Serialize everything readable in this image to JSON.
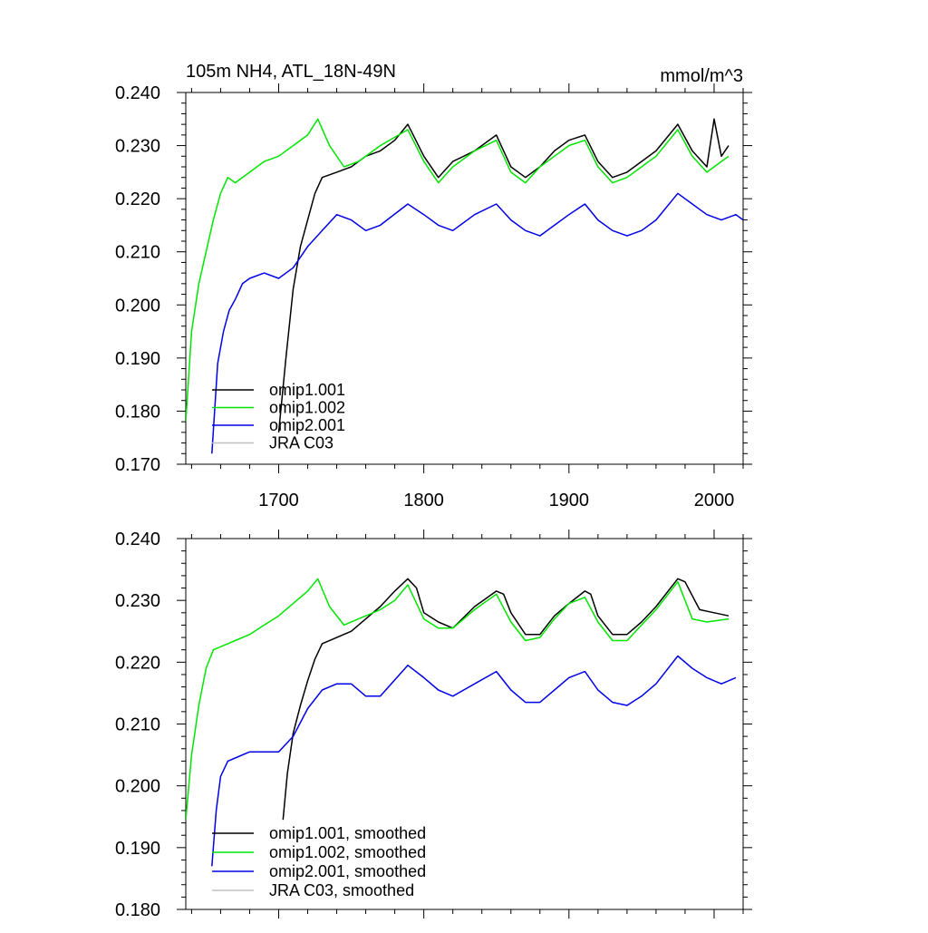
{
  "chart_data": [
    {
      "type": "line",
      "title": "105m NH4, ATL_18N-49N",
      "units": "mmol/m^3",
      "xlim": [
        1636,
        2020
      ],
      "ylim": [
        0.17,
        0.24
      ],
      "x_tick_labels": [
        "1700",
        "1800",
        "1900",
        "2000"
      ],
      "y_tick_labels": [
        "0.170",
        "0.180",
        "0.190",
        "0.200",
        "0.210",
        "0.220",
        "0.230",
        "0.240"
      ],
      "legend_position": "bottom-left",
      "legend": [
        "omip1.001",
        "omip1.002",
        "omip2.001",
        "JRA C03"
      ],
      "series": [
        {
          "name": "omip1.001",
          "color": "#000000",
          "x": [
            1700,
            1705,
            1710,
            1715,
            1720,
            1725,
            1730,
            1740,
            1750,
            1760,
            1770,
            1780,
            1789,
            1800,
            1810,
            1820,
            1835,
            1850,
            1860,
            1870,
            1880,
            1890,
            1900,
            1911,
            1920,
            1930,
            1940,
            1950,
            1960,
            1975,
            1985,
            1995,
            2000,
            2005,
            2010
          ],
          "y": [
            0.176,
            0.19,
            0.203,
            0.211,
            0.216,
            0.221,
            0.224,
            0.225,
            0.226,
            0.228,
            0.229,
            0.231,
            0.234,
            0.228,
            0.224,
            0.227,
            0.229,
            0.232,
            0.226,
            0.224,
            0.226,
            0.229,
            0.231,
            0.232,
            0.227,
            0.224,
            0.225,
            0.227,
            0.229,
            0.234,
            0.229,
            0.226,
            0.235,
            0.228,
            0.23
          ]
        },
        {
          "name": "omip1.002",
          "color": "#00e600",
          "x": [
            1636,
            1640,
            1645,
            1650,
            1655,
            1660,
            1665,
            1670,
            1680,
            1690,
            1700,
            1710,
            1720,
            1727,
            1735,
            1745,
            1755,
            1770,
            1789,
            1800,
            1810,
            1820,
            1835,
            1850,
            1860,
            1870,
            1880,
            1890,
            1900,
            1911,
            1920,
            1930,
            1940,
            1950,
            1960,
            1975,
            1985,
            1995,
            2005,
            2010
          ],
          "y": [
            0.178,
            0.195,
            0.204,
            0.21,
            0.216,
            0.221,
            0.224,
            0.223,
            0.225,
            0.227,
            0.228,
            0.23,
            0.232,
            0.235,
            0.23,
            0.226,
            0.227,
            0.23,
            0.233,
            0.227,
            0.223,
            0.226,
            0.229,
            0.231,
            0.225,
            0.223,
            0.226,
            0.228,
            0.23,
            0.231,
            0.226,
            0.223,
            0.224,
            0.226,
            0.228,
            0.233,
            0.228,
            0.225,
            0.227,
            0.228
          ]
        },
        {
          "name": "omip2.001",
          "color": "#0000e6",
          "x": [
            1654,
            1658,
            1662,
            1666,
            1670,
            1675,
            1680,
            1690,
            1700,
            1710,
            1720,
            1730,
            1740,
            1750,
            1760,
            1770,
            1789,
            1800,
            1810,
            1820,
            1835,
            1850,
            1860,
            1870,
            1880,
            1890,
            1900,
            1911,
            1920,
            1930,
            1940,
            1950,
            1960,
            1975,
            1985,
            1995,
            2005,
            2015,
            2020
          ],
          "y": [
            0.172,
            0.189,
            0.195,
            0.199,
            0.201,
            0.204,
            0.205,
            0.206,
            0.205,
            0.207,
            0.211,
            0.214,
            0.217,
            0.216,
            0.214,
            0.215,
            0.219,
            0.217,
            0.215,
            0.214,
            0.217,
            0.219,
            0.216,
            0.214,
            0.213,
            0.215,
            0.217,
            0.219,
            0.216,
            0.214,
            0.213,
            0.214,
            0.216,
            0.221,
            0.219,
            0.217,
            0.216,
            0.217,
            0.216
          ]
        },
        {
          "name": "JRA C03",
          "color": "#c0c0c0",
          "x": [],
          "y": []
        }
      ]
    },
    {
      "type": "line",
      "xlim": [
        1636,
        2020
      ],
      "ylim": [
        0.18,
        0.24
      ],
      "y_tick_labels": [
        "0.180",
        "0.190",
        "0.200",
        "0.210",
        "0.220",
        "0.230",
        "0.240"
      ],
      "legend_position": "bottom-left",
      "legend": [
        "omip1.001, smoothed",
        "omip1.002, smoothed",
        "omip2.001, smoothed",
        "JRA C03, smoothed"
      ],
      "series": [
        {
          "name": "omip1.001, smoothed",
          "color": "#000000",
          "x": [
            1703,
            1706,
            1710,
            1715,
            1720,
            1725,
            1730,
            1740,
            1750,
            1760,
            1770,
            1780,
            1789,
            1795,
            1800,
            1810,
            1820,
            1835,
            1850,
            1855,
            1860,
            1870,
            1880,
            1890,
            1900,
            1911,
            1915,
            1920,
            1930,
            1940,
            1950,
            1960,
            1975,
            1980,
            1990,
            2000,
            2010
          ],
          "y": [
            0.1945,
            0.202,
            0.2085,
            0.213,
            0.217,
            0.2205,
            0.223,
            0.224,
            0.225,
            0.227,
            0.229,
            0.2315,
            0.2335,
            0.232,
            0.228,
            0.2265,
            0.2255,
            0.229,
            0.2315,
            0.231,
            0.228,
            0.2245,
            0.2245,
            0.2275,
            0.2295,
            0.2315,
            0.231,
            0.2275,
            0.2245,
            0.2245,
            0.2265,
            0.229,
            0.2335,
            0.233,
            0.2285,
            0.228,
            0.2275
          ]
        },
        {
          "name": "omip1.002, smoothed",
          "color": "#00e600",
          "x": [
            1636,
            1640,
            1645,
            1650,
            1655,
            1660,
            1670,
            1680,
            1690,
            1700,
            1710,
            1720,
            1727,
            1735,
            1745,
            1755,
            1770,
            1780,
            1789,
            1800,
            1810,
            1820,
            1835,
            1850,
            1860,
            1870,
            1880,
            1890,
            1900,
            1911,
            1920,
            1930,
            1940,
            1950,
            1960,
            1975,
            1985,
            1995,
            2010
          ],
          "y": [
            0.1945,
            0.205,
            0.213,
            0.219,
            0.222,
            0.2225,
            0.2235,
            0.2245,
            0.226,
            0.2275,
            0.2295,
            0.2315,
            0.2335,
            0.229,
            0.226,
            0.227,
            0.2285,
            0.23,
            0.2325,
            0.227,
            0.2255,
            0.2255,
            0.2285,
            0.231,
            0.2265,
            0.2235,
            0.224,
            0.227,
            0.2295,
            0.2305,
            0.2265,
            0.2235,
            0.2235,
            0.226,
            0.2285,
            0.233,
            0.227,
            0.2265,
            0.227
          ]
        },
        {
          "name": "omip2.001, smoothed",
          "color": "#0000e6",
          "x": [
            1654,
            1657,
            1660,
            1665,
            1670,
            1680,
            1690,
            1700,
            1710,
            1720,
            1730,
            1740,
            1750,
            1760,
            1770,
            1789,
            1800,
            1810,
            1820,
            1835,
            1850,
            1860,
            1870,
            1880,
            1890,
            1900,
            1911,
            1920,
            1930,
            1940,
            1950,
            1960,
            1975,
            1985,
            1995,
            2005,
            2015
          ],
          "y": [
            0.187,
            0.196,
            0.2015,
            0.204,
            0.2045,
            0.2055,
            0.2055,
            0.2055,
            0.208,
            0.2125,
            0.2155,
            0.2165,
            0.2165,
            0.2145,
            0.2145,
            0.2195,
            0.2175,
            0.2155,
            0.2145,
            0.2165,
            0.2185,
            0.2155,
            0.2135,
            0.2135,
            0.2155,
            0.2175,
            0.2185,
            0.2155,
            0.2135,
            0.213,
            0.2145,
            0.2165,
            0.221,
            0.219,
            0.2175,
            0.2165,
            0.2175
          ]
        },
        {
          "name": "JRA C03, smoothed",
          "color": "#c0c0c0",
          "x": [],
          "y": []
        }
      ]
    }
  ]
}
